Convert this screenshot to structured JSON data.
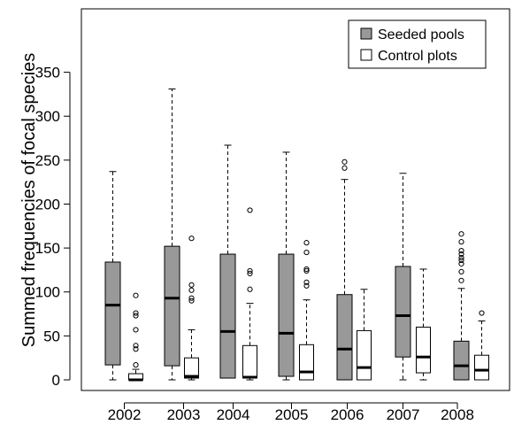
{
  "chart_data": {
    "type": "boxplot",
    "ylabel": "Summed frequencies of focal species",
    "xlabel": "",
    "ylim": [
      0,
      350
    ],
    "yticks": [
      0,
      50,
      100,
      150,
      200,
      250,
      300,
      350
    ],
    "categories": [
      "2002",
      "2003",
      "2004",
      "2005",
      "2006",
      "2007",
      "2008"
    ],
    "grid": false,
    "legend_position": "top-right",
    "series": [
      {
        "name": "Seeded pools",
        "color": "#999999",
        "boxes": [
          {
            "whisker_low": 0,
            "q1": 17,
            "median": 85,
            "q3": 134,
            "whisker_high": 237,
            "outliers": []
          },
          {
            "whisker_low": 0,
            "q1": 16,
            "median": 93,
            "q3": 152,
            "whisker_high": 331,
            "outliers": []
          },
          {
            "whisker_low": 2,
            "q1": 2,
            "median": 55,
            "q3": 143,
            "whisker_high": 267,
            "outliers": []
          },
          {
            "whisker_low": 0,
            "q1": 4,
            "median": 53,
            "q3": 143,
            "whisker_high": 259,
            "outliers": []
          },
          {
            "whisker_low": 0,
            "q1": 0,
            "median": 35,
            "q3": 97,
            "whisker_high": 228,
            "outliers": [
              241,
              248
            ]
          },
          {
            "whisker_low": 0,
            "q1": 26,
            "median": 73,
            "q3": 129,
            "whisker_high": 235,
            "outliers": []
          },
          {
            "whisker_low": 0,
            "q1": 0,
            "median": 16,
            "q3": 44,
            "whisker_high": 104,
            "outliers": [
              113,
              123,
              132,
              136,
              139,
              143,
              147,
              157,
              166
            ]
          }
        ]
      },
      {
        "name": "Control plots",
        "color": "#ffffff",
        "boxes": [
          {
            "whisker_low": 0,
            "q1": 0,
            "median": 0,
            "q3": 7,
            "whisker_high": 12,
            "outliers": [
              17,
              35,
              39,
              57,
              73,
              76,
              96
            ]
          },
          {
            "whisker_low": 0,
            "q1": 2,
            "median": 4,
            "q3": 25,
            "whisker_high": 57,
            "outliers": [
              90,
              93,
              102,
              108,
              161
            ]
          },
          {
            "whisker_low": 0,
            "q1": 2,
            "median": 3,
            "q3": 39,
            "whisker_high": 87,
            "outliers": [
              103,
              121,
              124,
              193
            ]
          },
          {
            "whisker_low": 0,
            "q1": 0,
            "median": 9,
            "q3": 40,
            "whisker_high": 91,
            "outliers": [
              107,
              111,
              124,
              126,
              145,
              156
            ]
          },
          {
            "whisker_low": 0,
            "q1": 0,
            "median": 14,
            "q3": 56,
            "whisker_high": 103,
            "outliers": []
          },
          {
            "whisker_low": 0,
            "q1": 8,
            "median": 26,
            "q3": 60,
            "whisker_high": 126,
            "outliers": []
          },
          {
            "whisker_low": 0,
            "q1": 0,
            "median": 11,
            "q3": 28,
            "whisker_high": 67,
            "outliers": [
              76
            ]
          }
        ]
      }
    ]
  }
}
